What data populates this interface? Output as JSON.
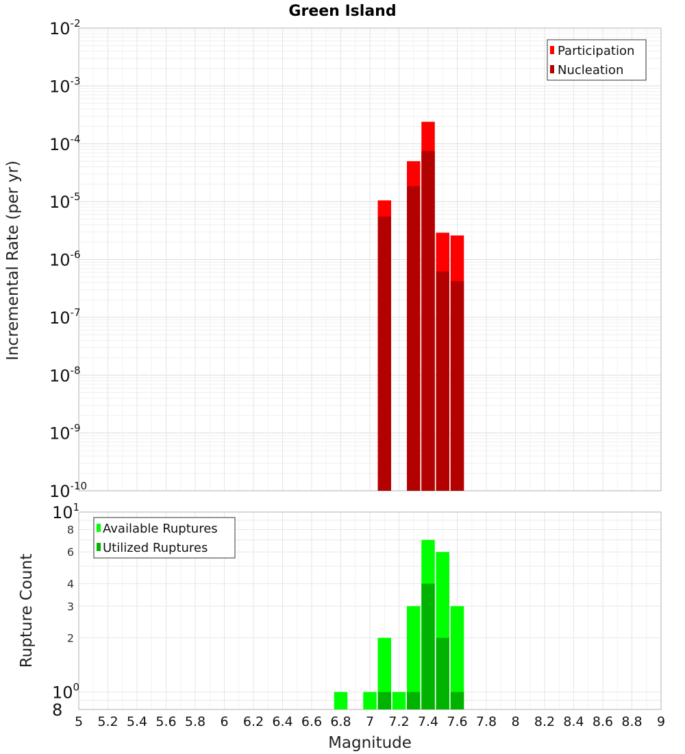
{
  "chart_data": [
    {
      "type": "bar",
      "title": "Green Island",
      "ylabel": "Incremental Rate (per yr)",
      "xlabel": "",
      "yscale": "log",
      "ylim_exp": [
        -10,
        -2
      ],
      "y_tick_exponents": [
        "-10",
        "-9",
        "-8",
        "-7",
        "-6",
        "-5",
        "-4",
        "-3",
        "-2"
      ],
      "y_tick_base": "10",
      "x": [
        7.1,
        7.3,
        7.4,
        7.5,
        7.6
      ],
      "series": [
        {
          "name": "Participation",
          "color": "#ff0000",
          "values": [
            1.05e-05,
            5e-05,
            0.00024,
            2.9e-06,
            2.6e-06
          ]
        },
        {
          "name": "Nucleation",
          "color": "#b30000",
          "values": [
            5.5e-06,
            1.85e-05,
            7.5e-05,
            6.2e-07,
            4.2e-07
          ]
        }
      ],
      "legend": "top-right"
    },
    {
      "type": "bar",
      "ylabel": "Rupture Count",
      "xlabel": "Magnitude",
      "yscale": "log",
      "ylim": [
        0.8,
        10
      ],
      "y_tick_big": [
        {
          "base": "10",
          "exp": "1",
          "value": 10
        },
        {
          "base": "10",
          "exp": "0",
          "value": 1
        },
        {
          "base": "8",
          "exp": "",
          "value": 0.8
        }
      ],
      "y_tick_small": [
        {
          "label": "8",
          "value": 8
        },
        {
          "label": "6",
          "value": 6
        },
        {
          "label": "4",
          "value": 4
        },
        {
          "label": "3",
          "value": 3
        },
        {
          "label": "2",
          "value": 2
        }
      ],
      "x_ticks": [
        "5",
        "5.2",
        "5.4",
        "5.6",
        "5.8",
        "6",
        "6.2",
        "6.4",
        "6.6",
        "6.8",
        "7",
        "7.2",
        "7.4",
        "7.6",
        "7.8",
        "8",
        "8.2",
        "8.4",
        "8.6",
        "8.8",
        "9"
      ],
      "xlim": [
        5,
        9
      ],
      "x": [
        6.8,
        7.0,
        7.1,
        7.2,
        7.3,
        7.4,
        7.5,
        7.6
      ],
      "series": [
        {
          "name": "Available Ruptures",
          "color": "#00ff00",
          "values": [
            1,
            1,
            2,
            1,
            3,
            7,
            6,
            3
          ]
        },
        {
          "name": "Utilized Ruptures",
          "color": "#00b300",
          "values": [
            0,
            0,
            1,
            0,
            1,
            4,
            2,
            1
          ]
        }
      ],
      "legend": "top-left"
    }
  ]
}
